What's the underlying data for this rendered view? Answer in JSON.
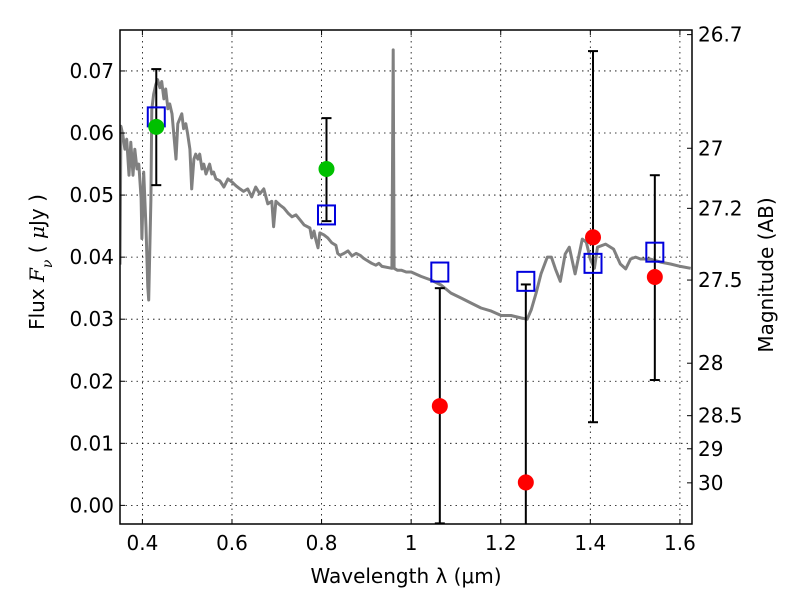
{
  "chart_data": {
    "type": "scatter",
    "title": "",
    "xlabel": "Wavelength  λ (μm)",
    "ylabel_parts": [
      "Flux ",
      "F",
      "ν",
      "  ( ",
      "μ",
      "Jy )"
    ],
    "ylabel": "Flux  F_ν  ( μJy )",
    "y2label": "Magnitude (AB)",
    "xlim": [
      0.35,
      1.627
    ],
    "ylim": [
      -0.003,
      0.0766
    ],
    "grid": true,
    "x_ticks": [
      0.4,
      0.6,
      0.8,
      1.0,
      1.2,
      1.4,
      1.6
    ],
    "x_tick_labels": [
      "0.4",
      "0.6",
      "0.8",
      "1",
      "1.2",
      "1.4",
      "1.6"
    ],
    "y_ticks": [
      0.0,
      0.01,
      0.02,
      0.03,
      0.04,
      0.05,
      0.06,
      0.07
    ],
    "y_tick_labels": [
      "0.00",
      "0.01",
      "0.02",
      "0.03",
      "0.04",
      "0.05",
      "0.06",
      "0.07"
    ],
    "y2_ticks": [
      26.7,
      27,
      27.2,
      27.5,
      28,
      28.5,
      29,
      30
    ],
    "y2_tick_labels": [
      "26.7",
      "27",
      "27.2",
      "27.5",
      "28",
      "28.5",
      "29",
      "30"
    ],
    "y2_zeropoint": 23.9,
    "colors": {
      "model": "#808080",
      "detection": "#00c000",
      "upper": "#ff0000",
      "synthetic": "#0000dd",
      "errorbar": "#000000"
    },
    "series": [
      {
        "name": "model-spectrum",
        "kind": "line",
        "points": [
          [
            0.35,
            0.0388
          ],
          [
            0.352,
            0.0611
          ],
          [
            0.356,
            0.0598
          ],
          [
            0.361,
            0.0574
          ],
          [
            0.365,
            0.059
          ],
          [
            0.37,
            0.0532
          ],
          [
            0.374,
            0.0585
          ],
          [
            0.379,
            0.0532
          ],
          [
            0.383,
            0.0574
          ],
          [
            0.388,
            0.0542
          ],
          [
            0.392,
            0.055
          ],
          [
            0.397,
            0.0495
          ],
          [
            0.399,
            0.043
          ],
          [
            0.403,
            0.0537
          ],
          [
            0.408,
            0.0448
          ],
          [
            0.412,
            0.0352
          ],
          [
            0.414,
            0.0331
          ],
          [
            0.419,
            0.0493
          ],
          [
            0.421,
            0.0638
          ],
          [
            0.425,
            0.0662
          ],
          [
            0.43,
            0.0678
          ],
          [
            0.434,
            0.0686
          ],
          [
            0.439,
            0.0673
          ],
          [
            0.443,
            0.0683
          ],
          [
            0.448,
            0.0655
          ],
          [
            0.452,
            0.0671
          ],
          [
            0.457,
            0.0639
          ],
          [
            0.461,
            0.0647
          ],
          [
            0.466,
            0.0631
          ],
          [
            0.475,
            0.0558
          ],
          [
            0.479,
            0.0615
          ],
          [
            0.488,
            0.0631
          ],
          [
            0.492,
            0.0607
          ],
          [
            0.497,
            0.0615
          ],
          [
            0.501,
            0.0599
          ],
          [
            0.506,
            0.0574
          ],
          [
            0.51,
            0.051
          ],
          [
            0.515,
            0.0558
          ],
          [
            0.519,
            0.0566
          ],
          [
            0.524,
            0.0558
          ],
          [
            0.528,
            0.0566
          ],
          [
            0.533,
            0.0542
          ],
          [
            0.537,
            0.055
          ],
          [
            0.542,
            0.0534
          ],
          [
            0.546,
            0.0542
          ],
          [
            0.55,
            0.055
          ],
          [
            0.555,
            0.0534
          ],
          [
            0.559,
            0.0537
          ],
          [
            0.564,
            0.0526
          ],
          [
            0.573,
            0.0523
          ],
          [
            0.582,
            0.0513
          ],
          [
            0.591,
            0.0526
          ],
          [
            0.6,
            0.0521
          ],
          [
            0.609,
            0.0515
          ],
          [
            0.618,
            0.051
          ],
          [
            0.626,
            0.0506
          ],
          [
            0.635,
            0.051
          ],
          [
            0.644,
            0.0497
          ],
          [
            0.653,
            0.0513
          ],
          [
            0.662,
            0.0502
          ],
          [
            0.671,
            0.051
          ],
          [
            0.68,
            0.0486
          ],
          [
            0.689,
            0.049
          ],
          [
            0.693,
            0.0449
          ],
          [
            0.698,
            0.049
          ],
          [
            0.707,
            0.0484
          ],
          [
            0.716,
            0.0479
          ],
          [
            0.725,
            0.0471
          ],
          [
            0.734,
            0.0465
          ],
          [
            0.743,
            0.0468
          ],
          [
            0.752,
            0.046
          ],
          [
            0.761,
            0.0452
          ],
          [
            0.774,
            0.0447
          ],
          [
            0.778,
            0.0431
          ],
          [
            0.783,
            0.0442
          ],
          [
            0.787,
            0.0429
          ],
          [
            0.792,
            0.0415
          ],
          [
            0.796,
            0.0439
          ],
          [
            0.805,
            0.0436
          ],
          [
            0.814,
            0.0431
          ],
          [
            0.823,
            0.0423
          ],
          [
            0.832,
            0.0419
          ],
          [
            0.836,
            0.0406
          ],
          [
            0.841,
            0.0403
          ],
          [
            0.85,
            0.0406
          ],
          [
            0.859,
            0.041
          ],
          [
            0.868,
            0.0402
          ],
          [
            0.877,
            0.0406
          ],
          [
            0.886,
            0.0403
          ],
          [
            0.894,
            0.0398
          ],
          [
            0.903,
            0.0394
          ],
          [
            0.912,
            0.039
          ],
          [
            0.921,
            0.0387
          ],
          [
            0.928,
            0.039
          ],
          [
            0.935,
            0.0385
          ],
          [
            0.957,
            0.0382
          ],
          [
            0.96,
            0.0734
          ],
          [
            0.962,
            0.0382
          ],
          [
            0.969,
            0.0379
          ],
          [
            0.978,
            0.0379
          ],
          [
            0.989,
            0.0376
          ],
          [
            1.0,
            0.0376
          ],
          [
            1.022,
            0.0369
          ],
          [
            1.045,
            0.0363
          ],
          [
            1.067,
            0.0355
          ],
          [
            1.089,
            0.0342
          ],
          [
            1.112,
            0.0334
          ],
          [
            1.134,
            0.0326
          ],
          [
            1.156,
            0.0318
          ],
          [
            1.179,
            0.0313
          ],
          [
            1.201,
            0.0306
          ],
          [
            1.223,
            0.0306
          ],
          [
            1.246,
            0.0302
          ],
          [
            1.259,
            0.03
          ],
          [
            1.268,
            0.0315
          ],
          [
            1.279,
            0.0342
          ],
          [
            1.29,
            0.0373
          ],
          [
            1.304,
            0.04
          ],
          [
            1.313,
            0.04
          ],
          [
            1.322,
            0.0381
          ],
          [
            1.333,
            0.0361
          ],
          [
            1.344,
            0.0405
          ],
          [
            1.353,
            0.0416
          ],
          [
            1.366,
            0.0373
          ],
          [
            1.382,
            0.0429
          ],
          [
            1.391,
            0.0424
          ],
          [
            1.4,
            0.0397
          ],
          [
            1.409,
            0.0382
          ],
          [
            1.416,
            0.0416
          ],
          [
            1.434,
            0.0421
          ],
          [
            1.452,
            0.0413
          ],
          [
            1.467,
            0.0389
          ],
          [
            1.479,
            0.0381
          ],
          [
            1.49,
            0.0397
          ],
          [
            1.501,
            0.04
          ],
          [
            1.512,
            0.0397
          ],
          [
            1.534,
            0.0397
          ],
          [
            1.557,
            0.0392
          ],
          [
            1.579,
            0.0389
          ],
          [
            1.601,
            0.0385
          ],
          [
            1.624,
            0.0382
          ]
        ]
      },
      {
        "name": "detections",
        "kind": "errorbar",
        "marker": "circle",
        "points": [
          {
            "x": 0.431,
            "y": 0.061,
            "yerr_lo": 0.0516,
            "yerr_hi": 0.0703
          },
          {
            "x": 0.811,
            "y": 0.0542,
            "yerr_lo": 0.0458,
            "yerr_hi": 0.0624
          }
        ]
      },
      {
        "name": "non-detections",
        "kind": "errorbar",
        "marker": "circle",
        "points": [
          {
            "x": 1.064,
            "y": 0.016,
            "yerr_lo": -0.0029,
            "yerr_hi": 0.035
          },
          {
            "x": 1.256,
            "y": 0.0037,
            "yerr_lo": -0.004,
            "yerr_hi": 0.0356
          },
          {
            "x": 1.406,
            "y": 0.0432,
            "yerr_lo": 0.0134,
            "yerr_hi": 0.0732
          },
          {
            "x": 1.544,
            "y": 0.0368,
            "yerr_lo": 0.0202,
            "yerr_hi": 0.0532
          }
        ]
      },
      {
        "name": "synthetic-photometry",
        "kind": "scatter",
        "marker": "square-open",
        "points": [
          [
            0.431,
            0.0626
          ],
          [
            0.811,
            0.0468
          ],
          [
            1.064,
            0.0376
          ],
          [
            1.256,
            0.0361
          ],
          [
            1.406,
            0.039
          ],
          [
            1.544,
            0.0408
          ]
        ]
      }
    ]
  }
}
